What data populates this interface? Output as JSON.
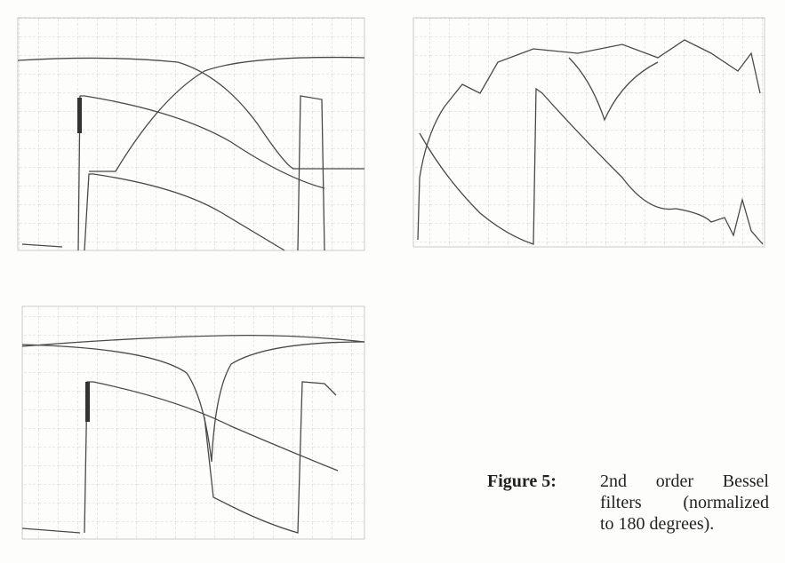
{
  "caption": {
    "label": "Figure 5:",
    "lines": [
      "2nd order Bessel",
      "filters (normalized",
      "to 180 degrees)."
    ]
  }
}
